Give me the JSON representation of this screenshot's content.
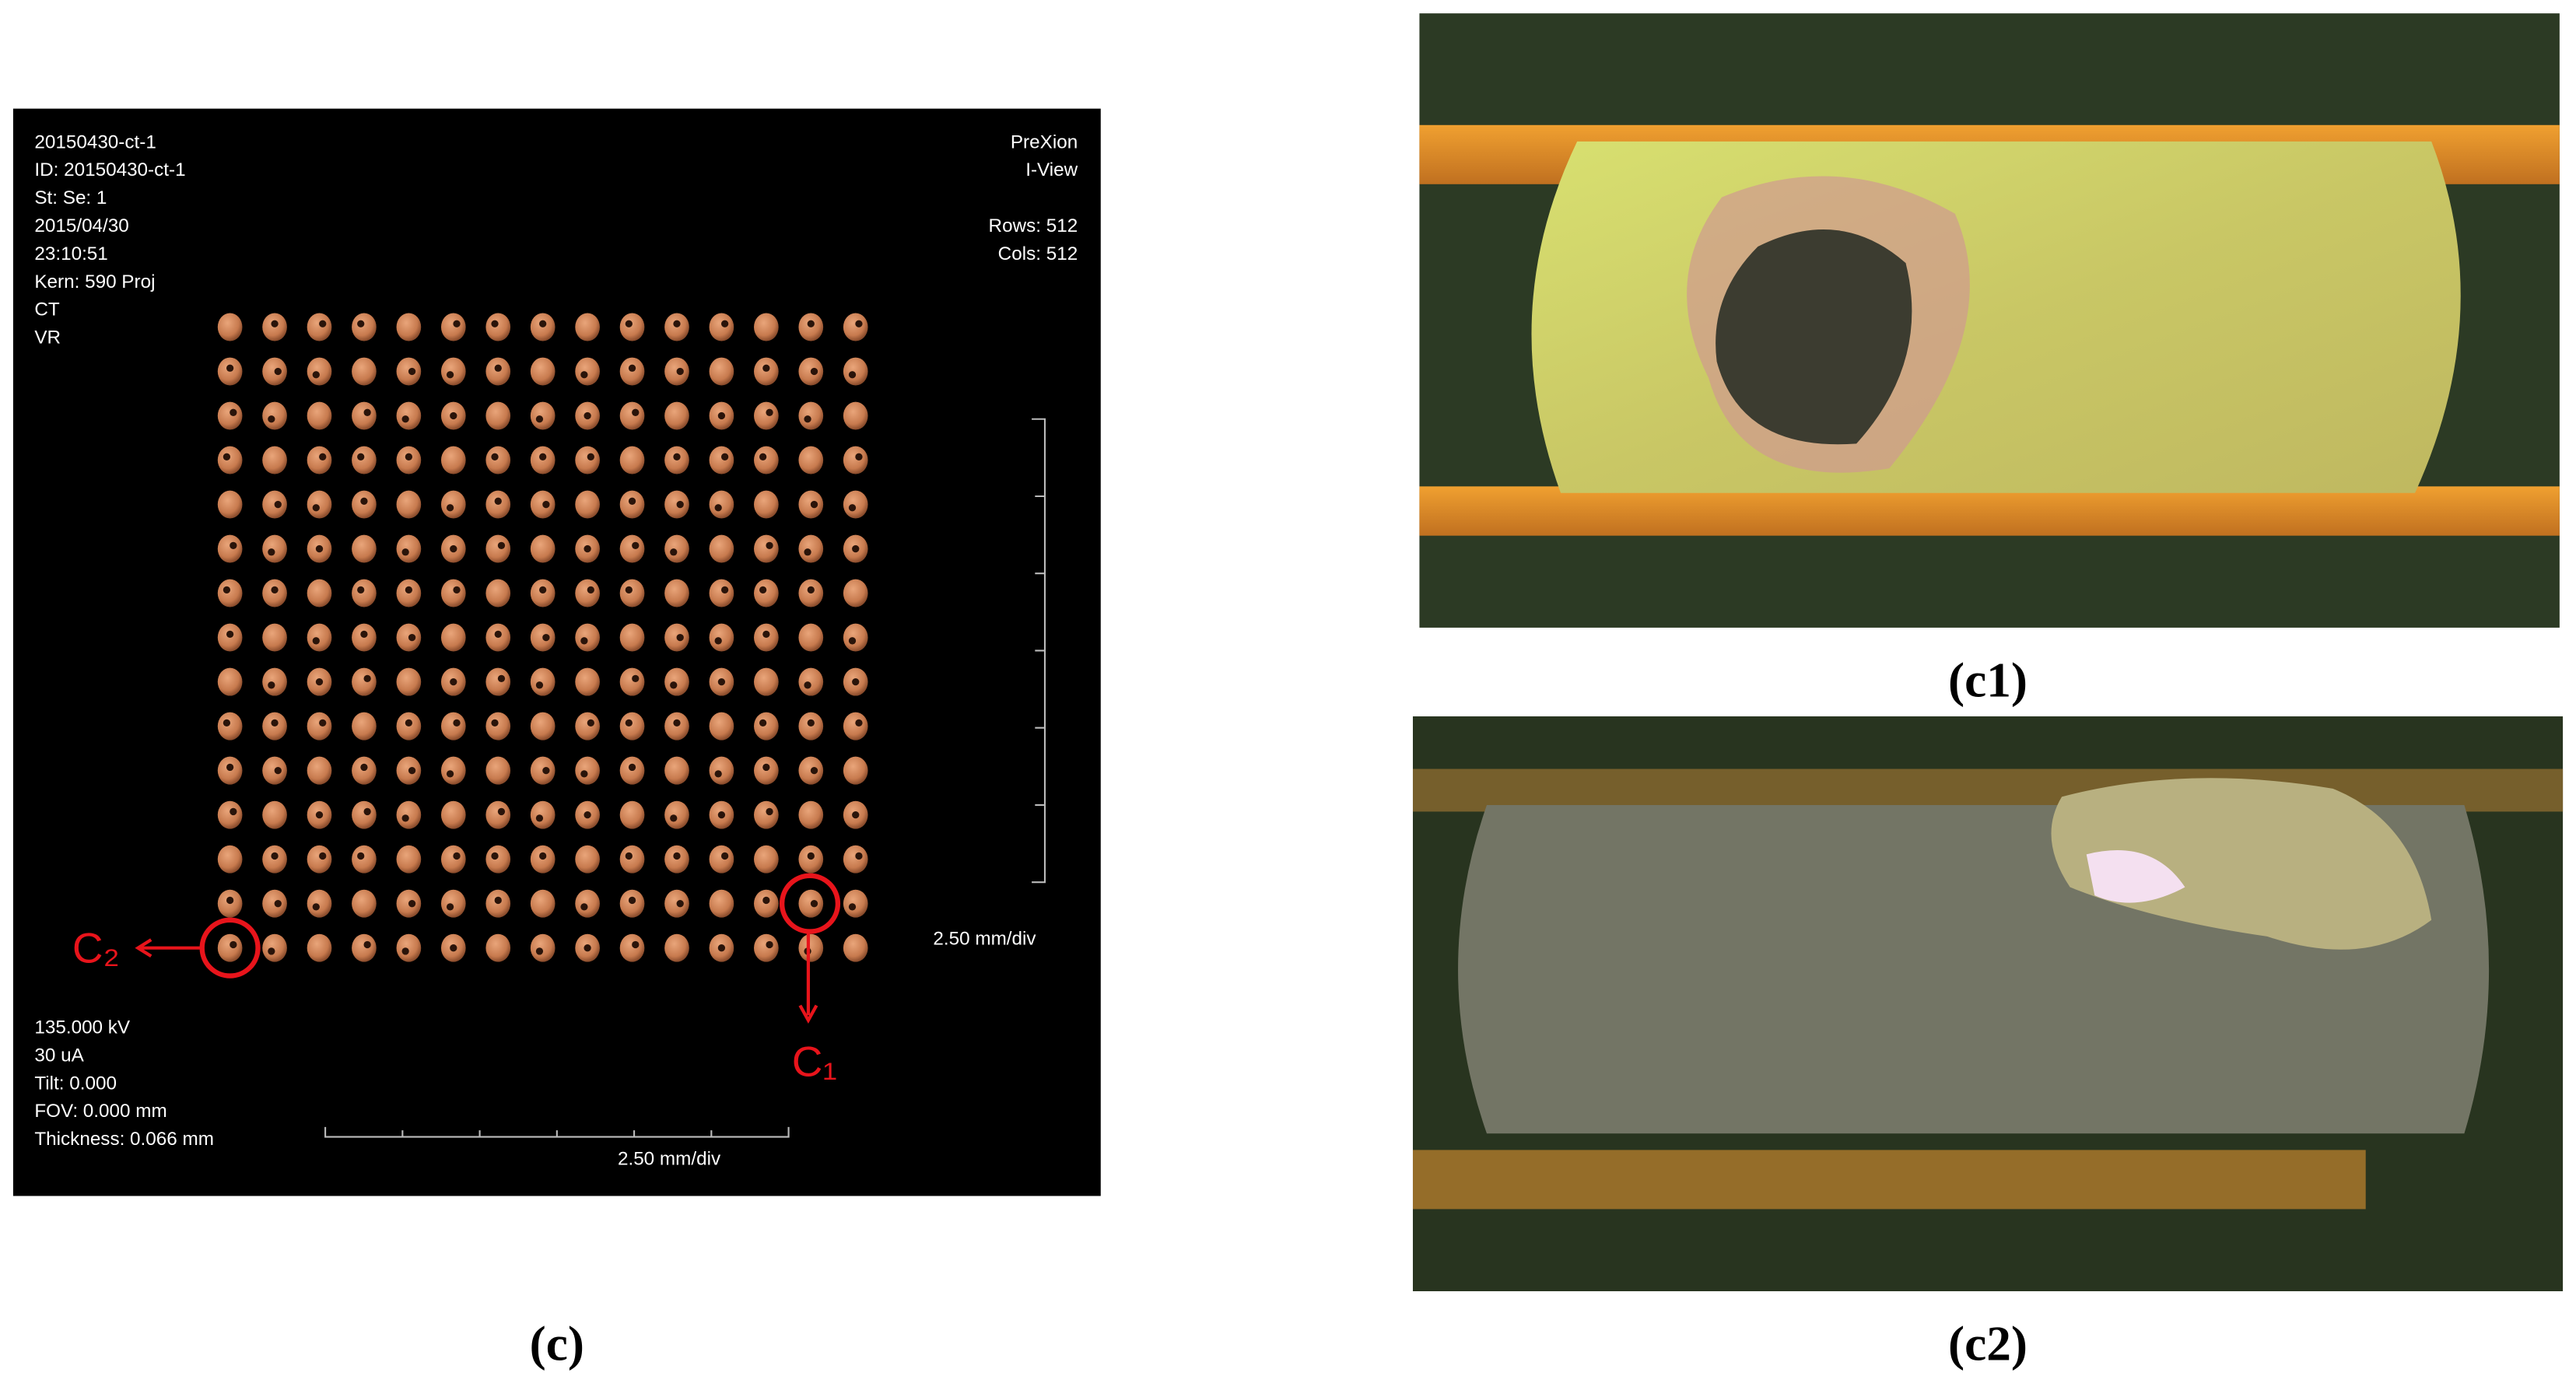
{
  "panel_c": {
    "header_left": [
      "20150430-ct-1",
      "ID: 20150430-ct-1",
      "St:  Se: 1",
      "2015/04/30",
      "23:10:51",
      "Kern: 590 Proj",
      "CT",
      "VR"
    ],
    "header_right": [
      "PreXion",
      "I-View",
      "",
      "Rows: 512",
      "Cols: 512"
    ],
    "footer_left": [
      "135.000 kV",
      "30 uA",
      "Tilt: 0.000",
      "FOV: 0.000 mm",
      "Thickness: 0.066 mm"
    ],
    "vertical_scale_label": "2.50 mm/div",
    "horizontal_scale_label": "2.50 mm/div",
    "annotations": {
      "c2": "C₂",
      "c1": "C₁"
    },
    "caption": "(c)"
  },
  "panel_c1": {
    "caption": "(c1)"
  },
  "panel_c2": {
    "caption": "(c2)"
  }
}
